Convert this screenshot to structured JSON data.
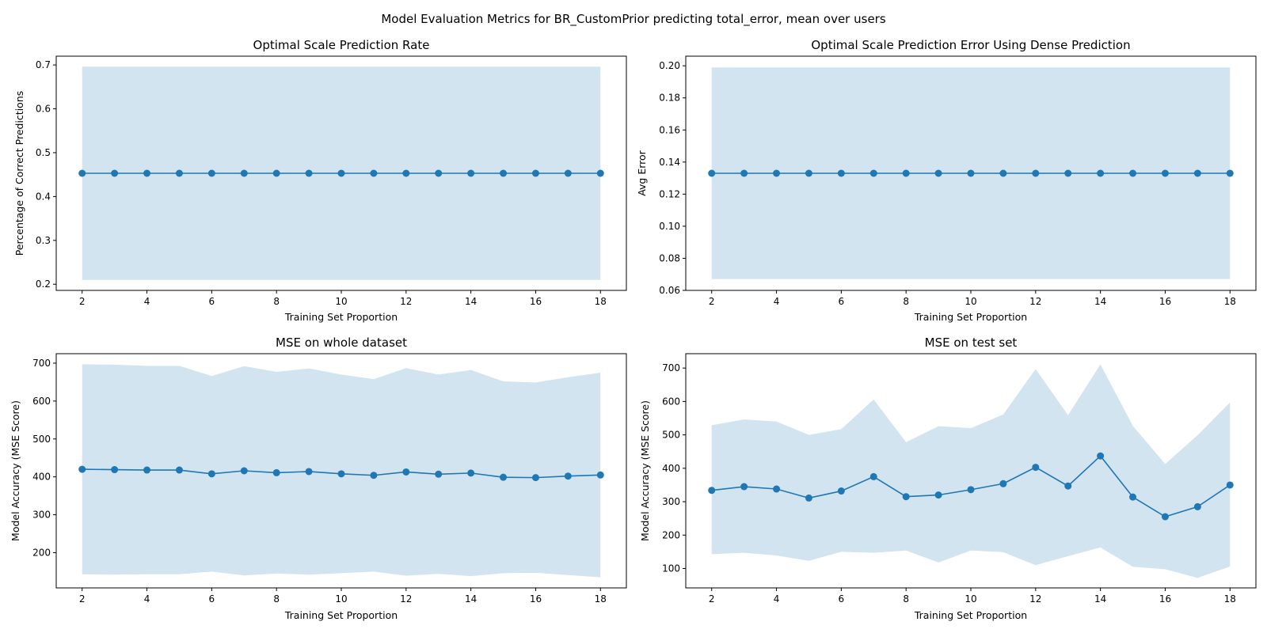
{
  "figure": {
    "suptitle": "Model Evaluation Metrics for BR_CustomPrior predicting total_error, mean over users",
    "line_color": "#1f77b4",
    "band_color": "#1f77b4"
  },
  "chart_data": [
    {
      "type": "line",
      "title": "Optimal Scale Prediction Rate",
      "xlabel": "Training Set Proportion",
      "ylabel": "Percentage of Correct Predictions",
      "x": [
        2,
        3,
        4,
        5,
        6,
        7,
        8,
        9,
        10,
        11,
        12,
        13,
        14,
        15,
        16,
        17,
        18
      ],
      "y": [
        0.453,
        0.453,
        0.453,
        0.453,
        0.453,
        0.453,
        0.453,
        0.453,
        0.453,
        0.453,
        0.453,
        0.453,
        0.453,
        0.453,
        0.453,
        0.453,
        0.453
      ],
      "band_upper": [
        0.696,
        0.696,
        0.696,
        0.696,
        0.696,
        0.696,
        0.696,
        0.696,
        0.696,
        0.696,
        0.696,
        0.696,
        0.696,
        0.696,
        0.696,
        0.696,
        0.696
      ],
      "band_lower": [
        0.21,
        0.21,
        0.21,
        0.21,
        0.21,
        0.21,
        0.21,
        0.21,
        0.21,
        0.21,
        0.21,
        0.21,
        0.21,
        0.21,
        0.21,
        0.21,
        0.21
      ],
      "xlim": [
        1.2,
        18.8
      ],
      "ylim": [
        0.186,
        0.72
      ],
      "xticks": [
        2,
        4,
        6,
        8,
        10,
        12,
        14,
        16,
        18
      ],
      "yticks": [
        0.2,
        0.3,
        0.4,
        0.5,
        0.6,
        0.7
      ],
      "yticklabels": [
        "0.2",
        "0.3",
        "0.4",
        "0.5",
        "0.6",
        "0.7"
      ],
      "grid": false
    },
    {
      "type": "line",
      "title": "Optimal Scale Prediction Error Using Dense Prediction",
      "xlabel": "Training Set Proportion",
      "ylabel": "Avg Error",
      "x": [
        2,
        3,
        4,
        5,
        6,
        7,
        8,
        9,
        10,
        11,
        12,
        13,
        14,
        15,
        16,
        17,
        18
      ],
      "y": [
        0.133,
        0.133,
        0.133,
        0.133,
        0.133,
        0.133,
        0.133,
        0.133,
        0.133,
        0.133,
        0.133,
        0.133,
        0.133,
        0.133,
        0.133,
        0.133,
        0.133
      ],
      "band_upper": [
        0.199,
        0.199,
        0.199,
        0.199,
        0.199,
        0.199,
        0.199,
        0.199,
        0.199,
        0.199,
        0.199,
        0.199,
        0.199,
        0.199,
        0.199,
        0.199,
        0.199
      ],
      "band_lower": [
        0.067,
        0.067,
        0.067,
        0.067,
        0.067,
        0.067,
        0.067,
        0.067,
        0.067,
        0.067,
        0.067,
        0.067,
        0.067,
        0.067,
        0.067,
        0.067,
        0.067
      ],
      "xlim": [
        1.2,
        18.8
      ],
      "ylim": [
        0.06,
        0.206
      ],
      "xticks": [
        2,
        4,
        6,
        8,
        10,
        12,
        14,
        16,
        18
      ],
      "yticks": [
        0.06,
        0.08,
        0.1,
        0.12,
        0.14,
        0.16,
        0.18,
        0.2
      ],
      "yticklabels": [
        "0.06",
        "0.08",
        "0.10",
        "0.12",
        "0.14",
        "0.16",
        "0.18",
        "0.20"
      ],
      "grid": false
    },
    {
      "type": "line",
      "title": "MSE on whole dataset",
      "xlabel": "Training Set Proportion",
      "ylabel": "Model Accuracy (MSE Score)",
      "x": [
        2,
        3,
        4,
        5,
        6,
        7,
        8,
        9,
        10,
        11,
        12,
        13,
        14,
        15,
        16,
        17,
        18
      ],
      "y": [
        420,
        419,
        418,
        418,
        408,
        416,
        411,
        414,
        408,
        404,
        413,
        407,
        410,
        399,
        398,
        402,
        405
      ],
      "band_upper": [
        697,
        696,
        693,
        693,
        666,
        692,
        677,
        686,
        670,
        658,
        687,
        670,
        682,
        652,
        649,
        663,
        675
      ],
      "band_lower": [
        143,
        142,
        143,
        143,
        150,
        140,
        145,
        142,
        146,
        150,
        139,
        144,
        138,
        146,
        147,
        141,
        135
      ],
      "xlim": [
        1.2,
        18.8
      ],
      "ylim": [
        107,
        725
      ],
      "xticks": [
        2,
        4,
        6,
        8,
        10,
        12,
        14,
        16,
        18
      ],
      "yticks": [
        200,
        300,
        400,
        500,
        600,
        700
      ],
      "yticklabels": [
        "200",
        "300",
        "400",
        "500",
        "600",
        "700"
      ],
      "grid": false
    },
    {
      "type": "line",
      "title": "MSE on test set",
      "xlabel": "Training Set Proportion",
      "ylabel": "Model Accuracy (MSE Score)",
      "x": [
        2,
        3,
        4,
        5,
        6,
        7,
        8,
        9,
        10,
        11,
        12,
        13,
        14,
        15,
        16,
        17,
        18
      ],
      "y": [
        334,
        345,
        338,
        311,
        332,
        375,
        315,
        320,
        336,
        354,
        403,
        347,
        437,
        314,
        255,
        285,
        350
      ],
      "band_upper": [
        529,
        546,
        540,
        500,
        517,
        606,
        478,
        526,
        520,
        561,
        697,
        559,
        711,
        527,
        413,
        499,
        597
      ],
      "band_lower": [
        143,
        147,
        139,
        123,
        150,
        147,
        154,
        118,
        154,
        149,
        110,
        137,
        163,
        105,
        98,
        72,
        106
      ],
      "xlim": [
        1.2,
        18.8
      ],
      "ylim": [
        42,
        743
      ],
      "xticks": [
        2,
        4,
        6,
        8,
        10,
        12,
        14,
        16,
        18
      ],
      "yticks": [
        100,
        200,
        300,
        400,
        500,
        600,
        700
      ],
      "yticklabels": [
        "100",
        "200",
        "300",
        "400",
        "500",
        "600",
        "700"
      ],
      "grid": false
    }
  ]
}
